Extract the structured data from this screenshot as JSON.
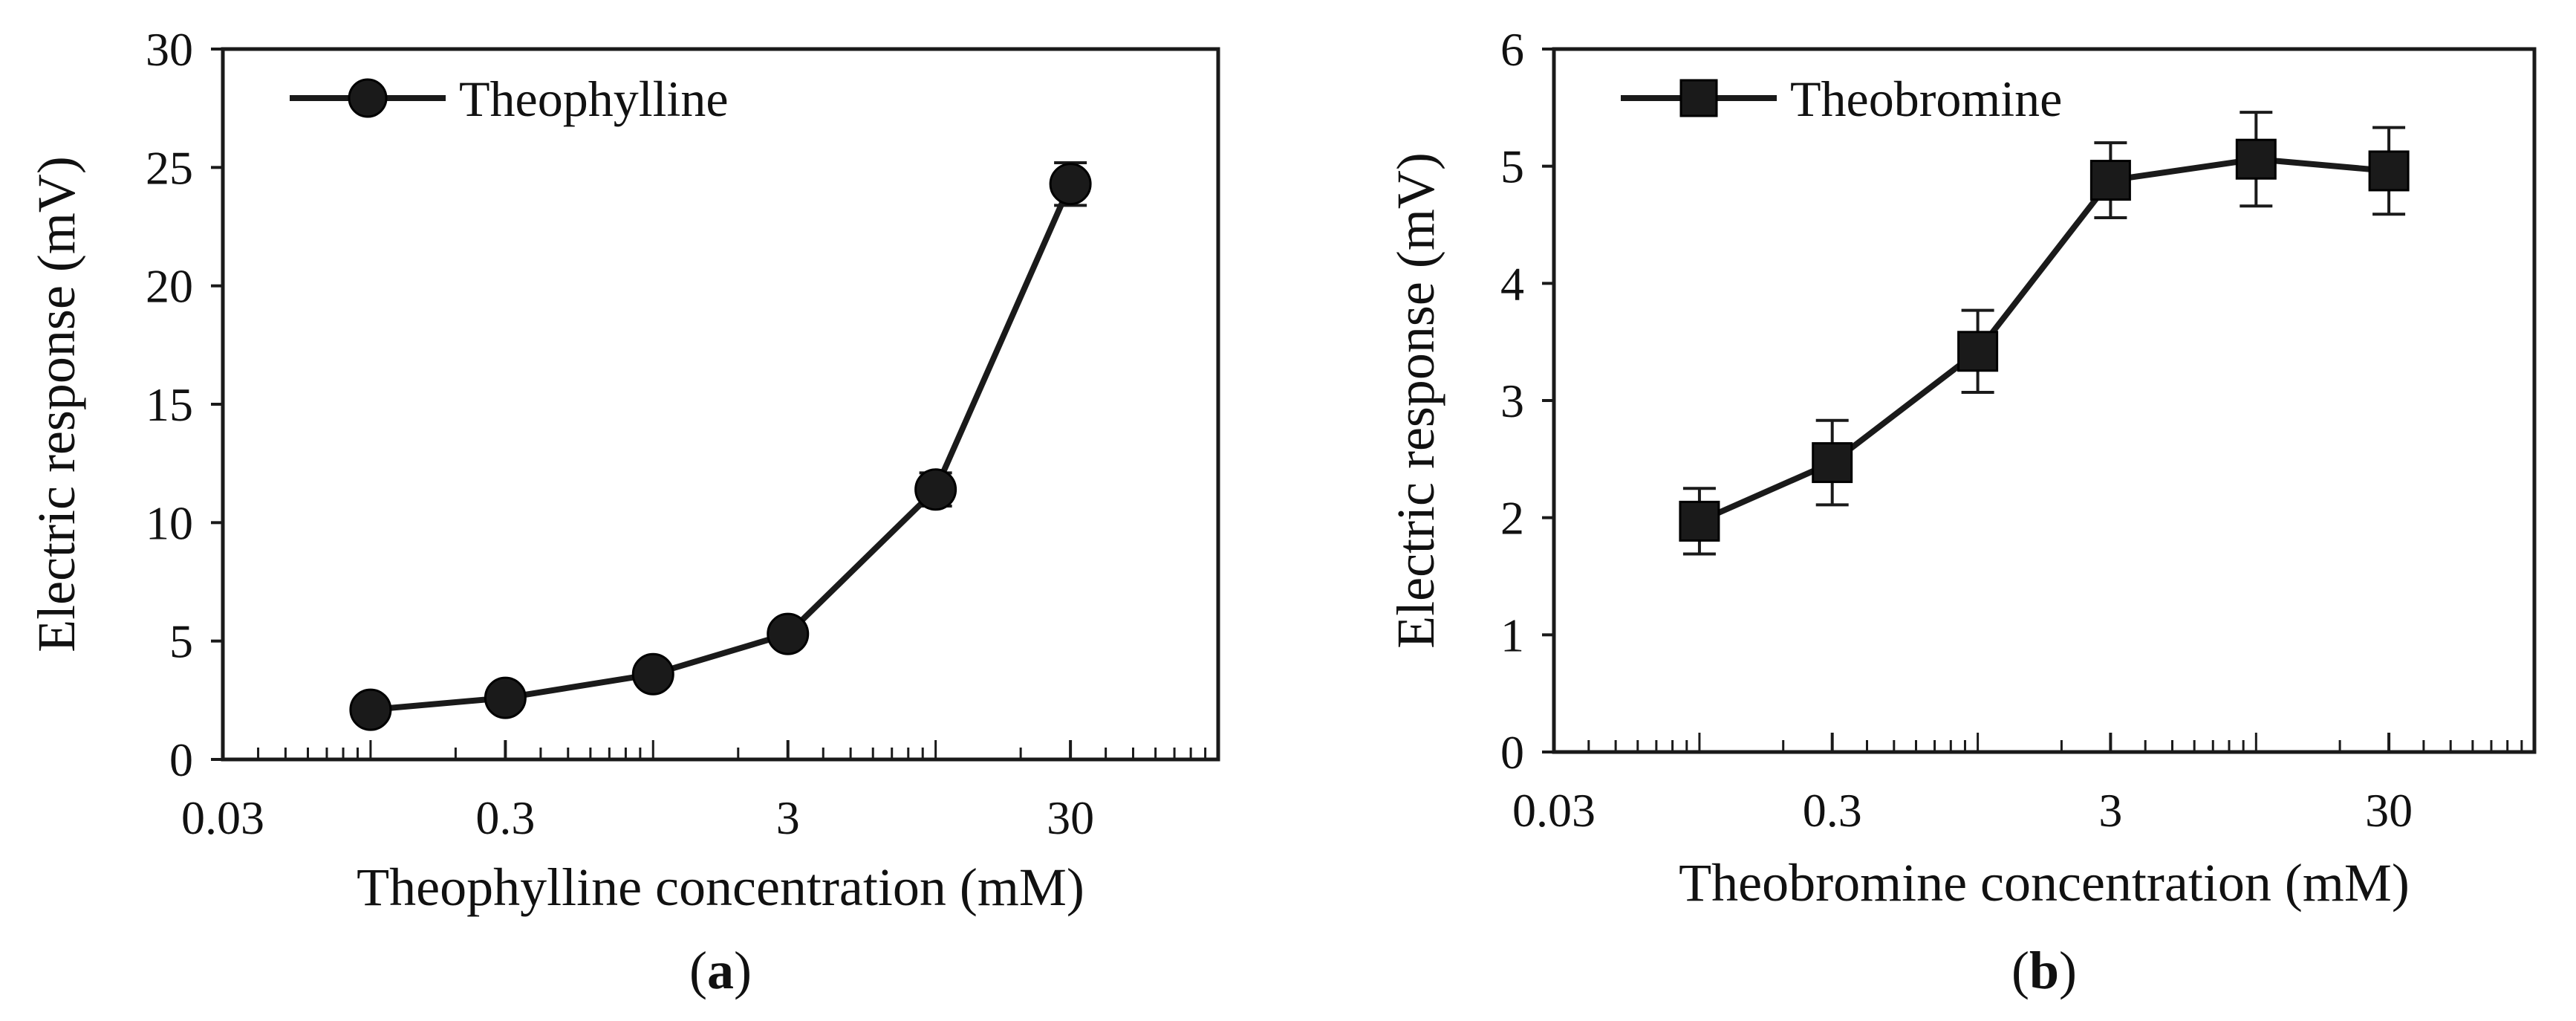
{
  "chart_data": [
    {
      "type": "line",
      "panel_label": "a",
      "title": "",
      "xlabel": "Theophylline concentration (mM)",
      "ylabel": "Electric response (mV)",
      "x_scale": "log",
      "xlim": [
        0.03,
        100
      ],
      "ylim": [
        0,
        30
      ],
      "x_ticks": [
        0.03,
        0.3,
        3,
        30
      ],
      "x_tick_labels": [
        "0.03",
        "0.3",
        "3",
        "30"
      ],
      "y_ticks": [
        0,
        5,
        10,
        15,
        20,
        25,
        30
      ],
      "y_tick_labels": [
        "0",
        "5",
        "10",
        "15",
        "20",
        "25",
        "30"
      ],
      "grid": false,
      "legend_position": "top-left",
      "marker": "circle",
      "color": "#1a1a1a",
      "series": [
        {
          "name": "Theophylline",
          "x": [
            0.1,
            0.3,
            1,
            3,
            10,
            30
          ],
          "values": [
            2.1,
            2.6,
            3.6,
            5.3,
            11.4,
            24.3
          ],
          "errors": [
            0.3,
            0.5,
            0.5,
            0.4,
            0.7,
            0.9
          ]
        }
      ]
    },
    {
      "type": "line",
      "panel_label": "b",
      "title": "",
      "xlabel": "Theobromine concentration (mM)",
      "ylabel": "Electric response (mV)",
      "x_scale": "log",
      "xlim": [
        0.03,
        100
      ],
      "ylim": [
        0,
        6
      ],
      "x_ticks": [
        0.03,
        0.3,
        3,
        30
      ],
      "x_tick_labels": [
        "0.03",
        "0.3",
        "3",
        "30"
      ],
      "y_ticks": [
        0,
        1,
        2,
        3,
        4,
        5,
        6
      ],
      "y_tick_labels": [
        "0",
        "1",
        "2",
        "3",
        "4",
        "5",
        "6"
      ],
      "grid": false,
      "legend_position": "top-left",
      "marker": "square",
      "color": "#1a1a1a",
      "series": [
        {
          "name": "Theobromine",
          "x": [
            0.1,
            0.3,
            1,
            3,
            10,
            30
          ],
          "values": [
            1.97,
            2.47,
            3.42,
            4.88,
            5.06,
            4.96
          ],
          "errors": [
            0.28,
            0.36,
            0.35,
            0.32,
            0.4,
            0.37
          ]
        }
      ]
    }
  ]
}
